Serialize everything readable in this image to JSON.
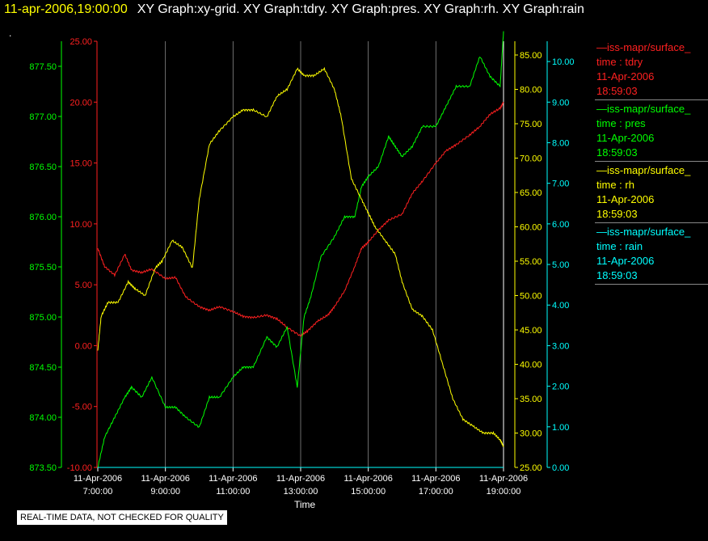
{
  "header": {
    "timestamp": "11-apr-2006,19:00:00",
    "graphs": "XY Graph:xy-grid.  XY Graph:tdry.  XY Graph:pres.  XY Graph:rh.  XY Graph:rain"
  },
  "dot": ".",
  "disclaimer": "REAL-TIME DATA, NOT CHECKED FOR QUALITY",
  "legend": [
    {
      "source": "iss-mapr/surface_",
      "field": "time : tdry",
      "date": "11-Apr-2006",
      "time": "18:59:03",
      "color": "#ff2020"
    },
    {
      "source": "iss-mapr/surface_",
      "field": "time : pres",
      "date": "11-Apr-2006",
      "time": "18:59:03",
      "color": "#00ff00"
    },
    {
      "source": "iss-mapr/surface_",
      "field": "time : rh",
      "date": "11-Apr-2006",
      "time": "18:59:03",
      "color": "#ffff00"
    },
    {
      "source": "iss-mapr/surface_",
      "field": "time : rain",
      "date": "11-Apr-2006",
      "time": "18:59:03",
      "color": "#00ffff"
    }
  ],
  "chart_data": {
    "type": "line",
    "xlabel": "Time",
    "x_ticks": [
      {
        "date": "11-Apr-2006",
        "time": "7:00:00"
      },
      {
        "date": "11-Apr-2006",
        "time": "9:00:00"
      },
      {
        "date": "11-Apr-2006",
        "time": "11:00:00"
      },
      {
        "date": "11-Apr-2006",
        "time": "13:00:00"
      },
      {
        "date": "11-Apr-2006",
        "time": "15:00:00"
      },
      {
        "date": "11-Apr-2006",
        "time": "17:00:00"
      },
      {
        "date": "11-Apr-2006",
        "time": "19:00:00"
      }
    ],
    "xlim_hours": [
      7,
      19
    ],
    "grid_vertical": true,
    "axes": [
      {
        "id": "tdry",
        "color": "#ff2020",
        "ylim": [
          -10,
          25
        ],
        "ticks": [
          "-10.00",
          "-5.00",
          "0.00",
          "5.00",
          "10.00",
          "15.00",
          "20.00",
          "25.00"
        ]
      },
      {
        "id": "pres",
        "color": "#00ff00",
        "ylim": [
          873.5,
          877.75
        ],
        "ticks": [
          "873.50",
          "874.00",
          "874.50",
          "875.00",
          "875.50",
          "876.00",
          "876.50",
          "877.00",
          "877.50"
        ]
      },
      {
        "id": "rh",
        "color": "#ffff00",
        "ylim": [
          25,
          87
        ],
        "ticks": [
          "25.00",
          "30.00",
          "35.00",
          "40.00",
          "45.00",
          "50.00",
          "55.00",
          "60.00",
          "65.00",
          "70.00",
          "75.00",
          "80.00",
          "85.00"
        ]
      },
      {
        "id": "rain",
        "color": "#00ffff",
        "ylim": [
          0,
          10.5
        ],
        "ticks": [
          "0.00",
          "1.00",
          "2.00",
          "3.00",
          "4.00",
          "5.00",
          "6.00",
          "7.00",
          "8.00",
          "9.00",
          "10.00"
        ]
      }
    ],
    "series": [
      {
        "name": "tdry",
        "color": "#ff2020",
        "x": [
          7,
          7.2,
          7.5,
          7.8,
          8,
          8.3,
          8.6,
          9,
          9.3,
          9.6,
          10,
          10.3,
          10.6,
          11,
          11.3,
          11.6,
          12,
          12.3,
          12.6,
          13,
          13.2,
          13.5,
          13.8,
          14,
          14.3,
          14.6,
          14.8,
          15,
          15.3,
          15.6,
          16,
          16.3,
          16.6,
          17,
          17.3,
          17.6,
          18,
          18.3,
          18.6,
          18.9,
          19
        ],
        "values": [
          8,
          6.5,
          5.8,
          7.5,
          6.2,
          6,
          6.3,
          5.5,
          5.6,
          4,
          3.2,
          2.9,
          3.2,
          2.8,
          2.4,
          2.3,
          2.5,
          2.2,
          1.5,
          0.8,
          1.2,
          2,
          2.5,
          3.2,
          4.5,
          6.5,
          8,
          8.5,
          9.5,
          10.3,
          10.8,
          12.5,
          13.5,
          15,
          16,
          16.5,
          17.3,
          18,
          19,
          19.5,
          20
        ]
      },
      {
        "name": "pres",
        "color": "#00ff00",
        "x": [
          7,
          7.2,
          7.5,
          7.8,
          8,
          8.3,
          8.6,
          9,
          9.3,
          9.6,
          10,
          10.3,
          10.6,
          11,
          11.3,
          11.6,
          12,
          12.3,
          12.6,
          12.9,
          13.1,
          13.3,
          13.6,
          14,
          14.3,
          14.6,
          14.8,
          15,
          15.3,
          15.6,
          15.8,
          16,
          16.3,
          16.6,
          17,
          17.3,
          17.6,
          18,
          18.3,
          18.6,
          18.9,
          19
        ],
        "values": [
          873.5,
          873.8,
          874.0,
          874.2,
          874.3,
          874.2,
          874.4,
          874.1,
          874.1,
          874.0,
          873.9,
          874.2,
          874.2,
          874.4,
          874.5,
          874.5,
          874.8,
          874.7,
          874.9,
          874.3,
          875.0,
          875.2,
          875.6,
          875.8,
          876.0,
          876.0,
          876.3,
          876.4,
          876.5,
          876.8,
          876.7,
          876.6,
          876.7,
          876.9,
          876.9,
          877.1,
          877.3,
          877.3,
          877.6,
          877.4,
          877.3,
          877.85
        ]
      },
      {
        "name": "rh",
        "color": "#ffff00",
        "x": [
          7,
          7.1,
          7.3,
          7.6,
          7.9,
          8.1,
          8.4,
          8.7,
          8.9,
          9.2,
          9.5,
          9.8,
          10,
          10.3,
          10.6,
          11,
          11.3,
          11.6,
          12,
          12.3,
          12.6,
          12.9,
          13.1,
          13.4,
          13.7,
          14,
          14.2,
          14.5,
          14.8,
          15,
          15.2,
          15.5,
          15.8,
          16,
          16.3,
          16.6,
          16.9,
          17.2,
          17.5,
          17.8,
          18.1,
          18.4,
          18.7,
          18.9,
          19
        ],
        "values": [
          42,
          47,
          49,
          49,
          52,
          51,
          50,
          54,
          55,
          58,
          57,
          54,
          64,
          72,
          74,
          76,
          77,
          77,
          76,
          79,
          80,
          83,
          82,
          82,
          83,
          80,
          76,
          67,
          64,
          62,
          60,
          58,
          56,
          52,
          48,
          47,
          45,
          40,
          35,
          32,
          31,
          30,
          30,
          29,
          28
        ]
      },
      {
        "name": "rain",
        "color": "#00ffff",
        "x": [
          7,
          19
        ],
        "values": [
          0,
          0
        ]
      }
    ]
  }
}
